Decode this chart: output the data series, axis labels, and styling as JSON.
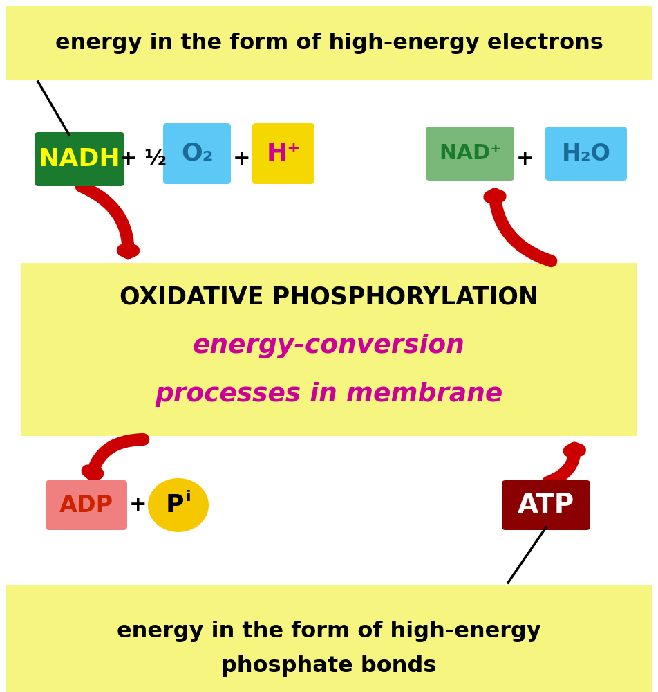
{
  "bg_color": "#ffffff",
  "yellow_light": "#f5f580",
  "top_banner_text": "energy in the form of high-energy electrons",
  "bottom_banner_text1": "energy in the form of high-energy",
  "bottom_banner_text2": "phosphate bonds",
  "oxidative_text": "OXIDATIVE PHOSPHORYLATION",
  "energy_conv_text1": "energy-conversion",
  "energy_conv_text2": "processes in membrane",
  "nadh_color": "#1a7a2e",
  "nadh_text": "NADH",
  "nadh_text_color": "#ffff00",
  "o2_color": "#5bc8f5",
  "o2_text": "O₂",
  "o2_text_color": "#1a6b99",
  "hplus_color": "#f5d800",
  "hplus_text": "H⁺",
  "hplus_text_color": "#cc0099",
  "nad_color": "#7ab87a",
  "nad_text": "NAD⁺",
  "nad_text_color": "#1a7a2e",
  "h2o_color": "#5bc8f5",
  "h2o_text": "H₂O",
  "h2o_text_color": "#1a6b99",
  "adp_color": "#f08080",
  "adp_text": "ADP",
  "adp_text_color": "#cc2200",
  "pi_color": "#f5c800",
  "pi_text": "P",
  "pi_sub": "i",
  "atp_color": "#8b0000",
  "atp_text": "ATP",
  "atp_text_color": "#ffffff",
  "arrow_color": "#cc0000",
  "plus_text_color": "#000000",
  "half_text": "+ ½",
  "plus_text": "+"
}
